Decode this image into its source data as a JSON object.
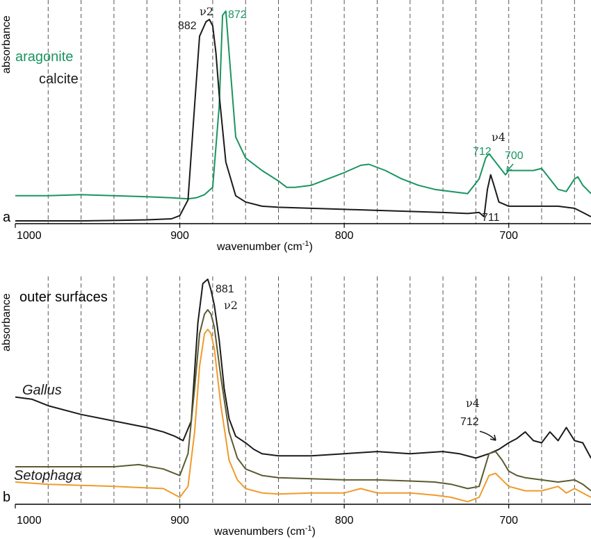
{
  "chart_data": [
    {
      "type": "line",
      "panel_label": "a",
      "xlabel": "wavenumber (cm",
      "xlabel_sup": "-1",
      "xlabel_close": ")",
      "ylabel": "absorbance",
      "xlim": [
        1000,
        650
      ],
      "ylim": [
        0,
        1
      ],
      "x_reversed": true,
      "xticks": [
        "1000",
        "900",
        "800",
        "700"
      ],
      "grid_x": [
        980,
        960,
        940,
        920,
        900,
        880,
        860,
        840,
        820,
        800,
        780,
        760,
        740,
        720,
        700,
        680,
        660
      ],
      "grid_style": "vertical dashed",
      "legend": {
        "placement": "top-left",
        "entries": [
          "aragonite",
          "calcite"
        ]
      },
      "annotations": [
        {
          "text": "ν2",
          "x": 880,
          "y": 1.0
        },
        {
          "text": "882",
          "x": 887,
          "y": 0.94
        },
        {
          "text": "872",
          "x": 869,
          "y": 1.0
        },
        {
          "text": "ν4",
          "x": 705,
          "y": 0.4
        },
        {
          "text": "712",
          "x": 718,
          "y": 0.32
        },
        {
          "text": "700",
          "x": 697,
          "y": 0.3
        },
        {
          "text": "711",
          "x": 704,
          "y": 0.02
        }
      ],
      "series": [
        {
          "name": "aragonite",
          "color": "#1a9460",
          "x": [
            1000,
            980,
            960,
            940,
            920,
            905,
            895,
            890,
            885,
            880,
            876,
            874,
            872,
            870,
            866,
            860,
            850,
            840,
            835,
            830,
            820,
            810,
            800,
            790,
            785,
            775,
            765,
            755,
            745,
            735,
            725,
            718,
            714,
            712,
            710,
            706,
            702,
            700,
            695,
            690,
            685,
            680,
            675,
            670,
            665,
            660,
            658,
            655,
            650
          ],
          "y": [
            0.12,
            0.12,
            0.125,
            0.12,
            0.115,
            0.11,
            0.105,
            0.11,
            0.125,
            0.16,
            0.55,
            0.98,
            1.0,
            0.8,
            0.4,
            0.3,
            0.24,
            0.19,
            0.16,
            0.16,
            0.17,
            0.2,
            0.23,
            0.265,
            0.27,
            0.24,
            0.2,
            0.17,
            0.15,
            0.14,
            0.13,
            0.2,
            0.3,
            0.32,
            0.3,
            0.26,
            0.22,
            0.24,
            0.24,
            0.24,
            0.24,
            0.25,
            0.2,
            0.15,
            0.14,
            0.2,
            0.21,
            0.17,
            0.13
          ]
        },
        {
          "name": "calcite",
          "color": "#1a1a1a",
          "x": [
            1000,
            980,
            960,
            940,
            920,
            905,
            900,
            895,
            891,
            888,
            884,
            882,
            880,
            878,
            876,
            872,
            866,
            860,
            850,
            840,
            820,
            800,
            780,
            760,
            740,
            725,
            718,
            715,
            713,
            711,
            709,
            706,
            700,
            690,
            680,
            670,
            660,
            655,
            650
          ],
          "y": [
            0.0,
            0.0,
            0.0,
            0.002,
            0.005,
            0.01,
            0.025,
            0.1,
            0.55,
            0.88,
            0.95,
            0.96,
            0.93,
            0.8,
            0.6,
            0.28,
            0.12,
            0.09,
            0.07,
            0.065,
            0.06,
            0.055,
            0.05,
            0.045,
            0.04,
            0.035,
            0.04,
            0.02,
            0.15,
            0.22,
            0.17,
            0.09,
            0.07,
            0.07,
            0.07,
            0.07,
            0.06,
            0.04,
            0.02
          ]
        }
      ]
    },
    {
      "type": "line",
      "panel_label": "b",
      "xlabel": "wavenumbers (cm",
      "xlabel_sup": "-1",
      "xlabel_close": ")",
      "ylabel": "absorbance",
      "xlim": [
        1000,
        650
      ],
      "ylim": [
        0,
        1
      ],
      "x_reversed": true,
      "xticks": [
        "1000",
        "900",
        "800",
        "700"
      ],
      "grid_x": [
        980,
        960,
        940,
        920,
        900,
        880,
        860,
        840,
        820,
        800,
        780,
        760,
        740,
        720,
        700,
        680,
        660
      ],
      "grid_style": "vertical dashed",
      "header": "outer surfaces",
      "annotations": [
        {
          "text": "881",
          "x": 869,
          "y": 0.98
        },
        {
          "text": "ν2",
          "x": 867,
          "y": 0.91
        },
        {
          "text": "ν4",
          "x": 712,
          "y": 0.42
        },
        {
          "text": "712",
          "x": 712,
          "y": 0.34
        }
      ],
      "series": [
        {
          "name": "Gallus",
          "color": "#1a1a1a",
          "x": [
            1000,
            990,
            980,
            960,
            940,
            920,
            910,
            903,
            898,
            893,
            889,
            886,
            883,
            881,
            879,
            876,
            873,
            870,
            866,
            860,
            855,
            850,
            840,
            830,
            820,
            800,
            780,
            760,
            740,
            730,
            720,
            712,
            706,
            700,
            695,
            690,
            685,
            680,
            675,
            670,
            665,
            660,
            655,
            650
          ],
          "y": [
            0.46,
            0.45,
            0.42,
            0.38,
            0.35,
            0.32,
            0.3,
            0.28,
            0.26,
            0.35,
            0.8,
            0.98,
            1.0,
            0.95,
            0.88,
            0.72,
            0.5,
            0.36,
            0.28,
            0.25,
            0.22,
            0.2,
            0.19,
            0.19,
            0.19,
            0.2,
            0.21,
            0.2,
            0.21,
            0.2,
            0.18,
            0.2,
            0.22,
            0.25,
            0.27,
            0.3,
            0.26,
            0.25,
            0.3,
            0.26,
            0.32,
            0.26,
            0.25,
            0.18
          ]
        },
        {
          "name": "Setophaga",
          "color": "#5a5a30",
          "x": [
            1000,
            990,
            980,
            960,
            940,
            925,
            910,
            900,
            895,
            891,
            888,
            885,
            883,
            881,
            879,
            875,
            870,
            865,
            860,
            850,
            840,
            820,
            800,
            780,
            760,
            745,
            735,
            725,
            718,
            712,
            708,
            704,
            700,
            695,
            690,
            680,
            670,
            660,
            655,
            650
          ],
          "y": [
            0.14,
            0.14,
            0.14,
            0.14,
            0.14,
            0.15,
            0.13,
            0.1,
            0.2,
            0.5,
            0.75,
            0.84,
            0.86,
            0.84,
            0.78,
            0.55,
            0.3,
            0.18,
            0.13,
            0.1,
            0.09,
            0.085,
            0.08,
            0.08,
            0.075,
            0.07,
            0.06,
            0.04,
            0.05,
            0.2,
            0.21,
            0.17,
            0.12,
            0.1,
            0.09,
            0.08,
            0.07,
            0.08,
            0.06,
            0.03
          ]
        },
        {
          "name": "",
          "color": "#f09a2a",
          "x": [
            1000,
            990,
            980,
            960,
            940,
            925,
            910,
            900,
            895,
            891,
            888,
            885,
            883,
            881,
            879,
            875,
            870,
            865,
            860,
            850,
            840,
            820,
            800,
            790,
            780,
            760,
            745,
            735,
            725,
            718,
            712,
            708,
            704,
            700,
            695,
            690,
            680,
            670,
            665,
            660,
            655,
            650
          ],
          "y": [
            0.07,
            0.065,
            0.06,
            0.055,
            0.05,
            0.045,
            0.04,
            0.0,
            0.05,
            0.3,
            0.6,
            0.75,
            0.77,
            0.75,
            0.68,
            0.42,
            0.17,
            0.08,
            0.04,
            0.02,
            0.015,
            0.02,
            0.02,
            0.04,
            0.02,
            0.02,
            0.01,
            0.0,
            -0.02,
            0.0,
            0.1,
            0.11,
            0.08,
            0.05,
            0.04,
            0.03,
            0.03,
            0.05,
            0.02,
            0.04,
            0.02,
            0.0
          ]
        }
      ]
    }
  ]
}
